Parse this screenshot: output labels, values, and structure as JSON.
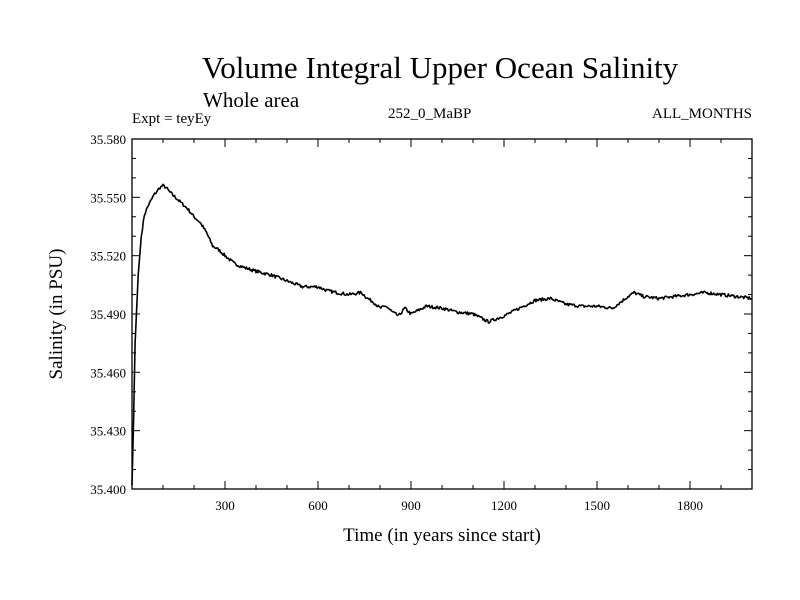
{
  "header": {
    "title": "Volume Integral Upper Ocean Salinity",
    "subtitle": "Whole area",
    "experiment": "Expt = teyEy",
    "run": "252_0_MaBP",
    "months": "ALL_MONTHS"
  },
  "chart_data": {
    "type": "line",
    "title": "Volume Integral Upper Ocean Salinity",
    "subtitle": "Whole area",
    "xlabel": "Time (in years since start)",
    "ylabel": "Salinity (in PSU)",
    "xlim": [
      0,
      2000
    ],
    "ylim": [
      35.4,
      35.58
    ],
    "xticks": [
      300,
      600,
      900,
      1200,
      1500,
      1800
    ],
    "xtick_labels": [
      "300",
      "600",
      "900",
      "1200",
      "1500",
      "1800"
    ],
    "yticks": [
      35.4,
      35.43,
      35.46,
      35.49,
      35.52,
      35.55,
      35.58
    ],
    "ytick_labels": [
      "35.400",
      "35.430",
      "35.460",
      "35.490",
      "35.520",
      "35.550",
      "35.580"
    ],
    "grid": false,
    "series": [
      {
        "name": "salinity",
        "x": [
          0,
          5,
          10,
          20,
          30,
          40,
          50,
          60,
          70,
          80,
          90,
          100,
          110,
          120,
          140,
          160,
          180,
          200,
          220,
          240,
          260,
          280,
          300,
          330,
          360,
          400,
          450,
          500,
          550,
          600,
          630,
          660,
          700,
          740,
          760,
          780,
          800,
          820,
          840,
          860,
          880,
          900,
          950,
          1000,
          1050,
          1100,
          1150,
          1200,
          1250,
          1300,
          1350,
          1400,
          1450,
          1500,
          1550,
          1600,
          1620,
          1650,
          1700,
          1750,
          1800,
          1850,
          1900,
          1950,
          2000
        ],
        "y": [
          35.402,
          35.435,
          35.475,
          35.51,
          35.53,
          35.541,
          35.545,
          35.548,
          35.551,
          35.553,
          35.555,
          35.556,
          35.555,
          35.553,
          35.55,
          35.547,
          35.544,
          35.54,
          35.537,
          35.532,
          35.525,
          35.523,
          35.52,
          35.516,
          35.514,
          35.512,
          35.51,
          35.507,
          35.504,
          35.504,
          35.502,
          35.501,
          35.5,
          35.501,
          35.498,
          35.496,
          35.493,
          35.494,
          35.491,
          35.489,
          35.493,
          35.49,
          35.494,
          35.493,
          35.491,
          35.49,
          35.486,
          35.489,
          35.493,
          35.497,
          35.498,
          35.495,
          35.494,
          35.494,
          35.493,
          35.499,
          35.501,
          35.499,
          35.498,
          35.499,
          35.5,
          35.501,
          35.5,
          35.499,
          35.498
        ]
      }
    ]
  }
}
